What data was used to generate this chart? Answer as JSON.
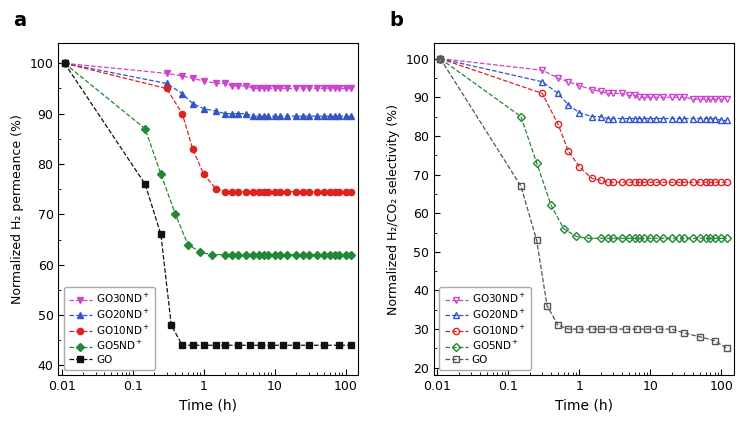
{
  "panel_a": {
    "ylabel": "Normalized H₂ permeance (%)",
    "xlabel": "Time (h)",
    "ylim": [
      38,
      104
    ],
    "yticks": [
      40,
      50,
      60,
      70,
      80,
      90,
      100
    ],
    "xlim": [
      0.009,
      150
    ],
    "series": {
      "GO30ND+": {
        "color": "#cc44cc",
        "marker": "v",
        "filled": true,
        "linestyle": "--",
        "x": [
          0.011,
          0.3,
          0.5,
          0.7,
          1.0,
          1.5,
          2.0,
          2.5,
          3.0,
          4.0,
          5.0,
          6.0,
          7.0,
          8.0,
          10,
          12,
          15,
          20,
          25,
          30,
          40,
          50,
          60,
          70,
          80,
          100,
          120
        ],
        "y": [
          100,
          98,
          97.5,
          97,
          96.5,
          96,
          96,
          95.5,
          95.5,
          95.5,
          95,
          95,
          95,
          95,
          95,
          95,
          95,
          95,
          95,
          95,
          95,
          95,
          95,
          95,
          95,
          95,
          95
        ]
      },
      "GO20ND+": {
        "color": "#3355cc",
        "marker": "^",
        "filled": true,
        "linestyle": "--",
        "x": [
          0.011,
          0.3,
          0.5,
          0.7,
          1.0,
          1.5,
          2.0,
          2.5,
          3.0,
          4.0,
          5.0,
          6.0,
          7.0,
          8.0,
          10,
          12,
          15,
          20,
          25,
          30,
          40,
          50,
          60,
          70,
          80,
          100,
          120
        ],
        "y": [
          100,
          96,
          94,
          92,
          91,
          90.5,
          90,
          90,
          90,
          90,
          89.5,
          89.5,
          89.5,
          89.5,
          89.5,
          89.5,
          89.5,
          89.5,
          89.5,
          89.5,
          89.5,
          89.5,
          89.5,
          89.5,
          89.5,
          89.5,
          89.5
        ]
      },
      "GO10ND+": {
        "color": "#dd2222",
        "marker": "o",
        "filled": true,
        "linestyle": "--",
        "x": [
          0.011,
          0.3,
          0.5,
          0.7,
          1.0,
          1.5,
          2.0,
          2.5,
          3.0,
          4.0,
          5.0,
          6.0,
          7.0,
          8.0,
          10,
          12,
          15,
          20,
          25,
          30,
          40,
          50,
          60,
          70,
          80,
          100,
          120
        ],
        "y": [
          100,
          95,
          90,
          83,
          78,
          75,
          74.5,
          74.5,
          74.5,
          74.5,
          74.5,
          74.5,
          74.5,
          74.5,
          74.5,
          74.5,
          74.5,
          74.5,
          74.5,
          74.5,
          74.5,
          74.5,
          74.5,
          74.5,
          74.5,
          74.5,
          74.5
        ]
      },
      "GO5ND+": {
        "color": "#228833",
        "marker": "D",
        "filled": true,
        "linestyle": "--",
        "x": [
          0.011,
          0.15,
          0.25,
          0.4,
          0.6,
          0.9,
          1.3,
          2.0,
          2.5,
          3.0,
          4.0,
          5.0,
          6.0,
          7.0,
          8.0,
          10,
          12,
          15,
          20,
          25,
          30,
          40,
          50,
          60,
          70,
          80,
          100,
          120
        ],
        "y": [
          100,
          87,
          78,
          70,
          64,
          62.5,
          62,
          62,
          62,
          62,
          62,
          62,
          62,
          62,
          62,
          62,
          62,
          62,
          62,
          62,
          62,
          62,
          62,
          62,
          62,
          62,
          62,
          62
        ]
      },
      "GO": {
        "color": "#111111",
        "marker": "s",
        "filled": true,
        "linestyle": "--",
        "x": [
          0.011,
          0.15,
          0.25,
          0.35,
          0.5,
          0.7,
          1.0,
          1.5,
          2.0,
          3.0,
          4.5,
          6.5,
          9.0,
          13,
          20,
          30,
          50,
          80,
          120
        ],
        "y": [
          100,
          76,
          66,
          48,
          44,
          44,
          44,
          44,
          44,
          44,
          44,
          44,
          44,
          44,
          44,
          44,
          44,
          44,
          44
        ]
      }
    }
  },
  "panel_b": {
    "ylabel": "Normalized H₂/CO₂ selectivity (%)",
    "xlabel": "Time (h)",
    "ylim": [
      18,
      104
    ],
    "yticks": [
      20,
      30,
      40,
      50,
      60,
      70,
      80,
      90,
      100
    ],
    "xlim": [
      0.009,
      150
    ],
    "series": {
      "GO30ND+": {
        "color": "#cc44cc",
        "marker": "v",
        "filled": false,
        "linestyle": "--",
        "x": [
          0.011,
          0.3,
          0.5,
          0.7,
          1.0,
          1.5,
          2.0,
          2.5,
          3.0,
          4.0,
          5.0,
          6.0,
          7.0,
          8.0,
          10,
          12,
          15,
          20,
          25,
          30,
          40,
          50,
          60,
          70,
          80,
          100,
          120
        ],
        "y": [
          100,
          97,
          95,
          94,
          93,
          92,
          91.5,
          91,
          91,
          91,
          90.5,
          90.5,
          90,
          90,
          90,
          90,
          90,
          90,
          90,
          90,
          89.5,
          89.5,
          89.5,
          89.5,
          89.5,
          89.5,
          89.5
        ]
      },
      "GO20ND+": {
        "color": "#3355cc",
        "marker": "^",
        "filled": false,
        "linestyle": "--",
        "x": [
          0.011,
          0.3,
          0.5,
          0.7,
          1.0,
          1.5,
          2.0,
          2.5,
          3.0,
          4.0,
          5.0,
          6.0,
          7.0,
          8.0,
          10,
          12,
          15,
          20,
          25,
          30,
          40,
          50,
          60,
          70,
          80,
          100,
          120
        ],
        "y": [
          100,
          94,
          91,
          88,
          86,
          85,
          85,
          84.5,
          84.5,
          84.5,
          84.5,
          84.5,
          84.5,
          84.5,
          84.5,
          84.5,
          84.5,
          84.5,
          84.5,
          84.5,
          84.5,
          84.5,
          84.5,
          84.5,
          84.5,
          84,
          84
        ]
      },
      "GO10ND+": {
        "color": "#dd2222",
        "marker": "o",
        "filled": false,
        "linestyle": "--",
        "x": [
          0.011,
          0.3,
          0.5,
          0.7,
          1.0,
          1.5,
          2.0,
          2.5,
          3.0,
          4.0,
          5.0,
          6.0,
          7.0,
          8.0,
          10,
          12,
          15,
          20,
          25,
          30,
          40,
          50,
          60,
          70,
          80,
          100,
          120
        ],
        "y": [
          100,
          91,
          83,
          76,
          72,
          69,
          68.5,
          68,
          68,
          68,
          68,
          68,
          68,
          68,
          68,
          68,
          68,
          68,
          68,
          68,
          68,
          68,
          68,
          68,
          68,
          68,
          68
        ]
      },
      "GO5ND+": {
        "color": "#228833",
        "marker": "D",
        "filled": false,
        "linestyle": "--",
        "x": [
          0.011,
          0.15,
          0.25,
          0.4,
          0.6,
          0.9,
          1.3,
          2.0,
          2.5,
          3.0,
          4.0,
          5.0,
          6.0,
          7.0,
          8.0,
          10,
          12,
          15,
          20,
          25,
          30,
          40,
          50,
          60,
          70,
          80,
          100,
          120
        ],
        "y": [
          100,
          85,
          73,
          62,
          56,
          54,
          53.5,
          53.5,
          53.5,
          53.5,
          53.5,
          53.5,
          53.5,
          53.5,
          53.5,
          53.5,
          53.5,
          53.5,
          53.5,
          53.5,
          53.5,
          53.5,
          53.5,
          53.5,
          53.5,
          53.5,
          53.5,
          53.5
        ]
      },
      "GO": {
        "color": "#555555",
        "marker": "s",
        "filled": false,
        "linestyle": "--",
        "x": [
          0.011,
          0.15,
          0.25,
          0.35,
          0.5,
          0.7,
          1.0,
          1.5,
          2.0,
          3.0,
          4.5,
          6.5,
          9.0,
          13,
          20,
          30,
          50,
          80,
          120
        ],
        "y": [
          100,
          67,
          53,
          36,
          31,
          30,
          30,
          30,
          30,
          30,
          30,
          30,
          30,
          30,
          30,
          29,
          28,
          27,
          25
        ]
      }
    }
  },
  "background_color": "#ffffff"
}
